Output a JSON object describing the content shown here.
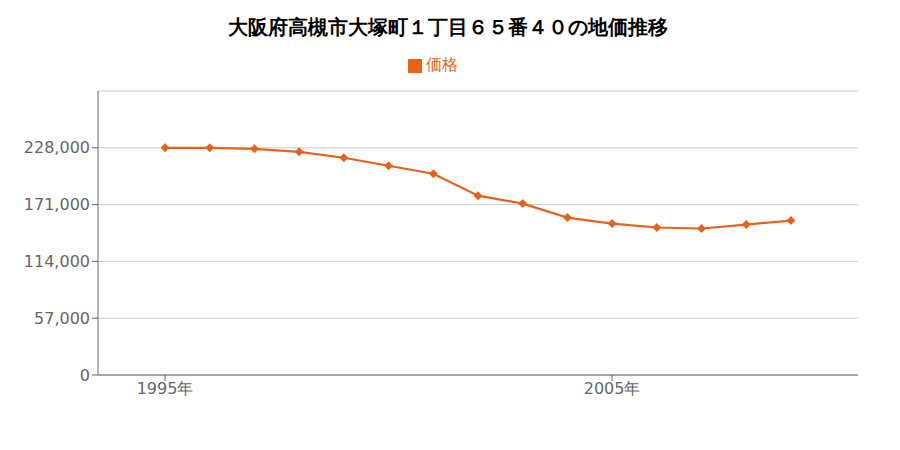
{
  "chart_data": {
    "type": "line",
    "title": "大阪府高槻市大塚町１丁目６５番４０の地価推移",
    "x": [
      1995,
      1996,
      1997,
      1998,
      1999,
      2000,
      2001,
      2002,
      2003,
      2004,
      2005,
      2006,
      2007,
      2008,
      2009
    ],
    "series": [
      {
        "name": "価格",
        "color": "#E8621A",
        "marker": "diamond",
        "values": [
          228000,
          228000,
          227000,
          224000,
          218000,
          210000,
          202000,
          180000,
          172000,
          158000,
          152000,
          148000,
          147000,
          151000,
          155000
        ]
      }
    ],
    "xlim": [
      1993.5,
      2010.5
    ],
    "xticks": [
      {
        "value": 1995,
        "label": "1995年"
      },
      {
        "value": 2005,
        "label": "2005年"
      }
    ],
    "ylim": [
      0,
      285000
    ],
    "yticks": [
      0,
      {
        "value": 57000,
        "label": "57,000"
      },
      {
        "value": 114000,
        "label": "114,000"
      },
      {
        "value": 171000,
        "label": "171,000"
      },
      {
        "value": 228000,
        "label": "228,000"
      }
    ],
    "grid": "y",
    "legend": "top"
  }
}
